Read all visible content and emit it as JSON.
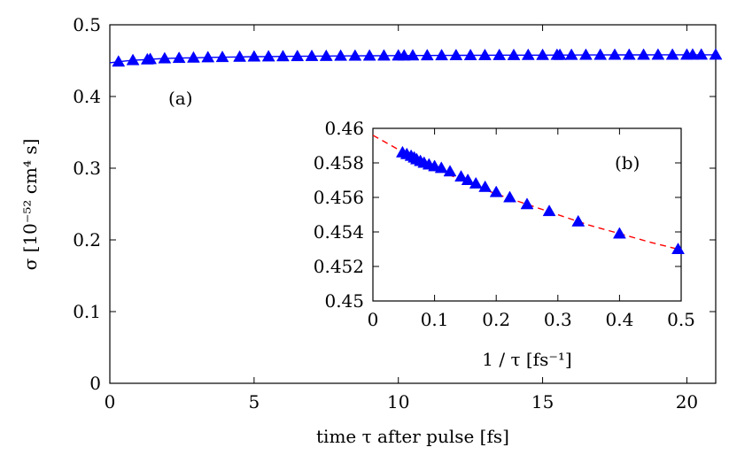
{
  "chart_data": [
    {
      "panel": "(a)",
      "type": "scatter",
      "xlabel": "time τ after pulse [fs]",
      "ylabel": "σ [10⁻⁵² cm⁴ s]",
      "xlim": [
        0,
        21
      ],
      "ylim": [
        0,
        0.5
      ],
      "xticks": [
        "0",
        "5",
        "10",
        "15",
        "20"
      ],
      "yticks": [
        "0",
        "0.1",
        "0.2",
        "0.3",
        "0.4",
        "0.5"
      ],
      "grid": false,
      "marker": "triangle",
      "series": [
        {
          "x": [
            0.3,
            0.8,
            1.3,
            1.4,
            1.9,
            2.4,
            2.9,
            3.4,
            3.9,
            4.5,
            5.0,
            5.5,
            6.0,
            6.5,
            7.0,
            7.5,
            8.0,
            8.5,
            9.0,
            9.5,
            10.0,
            10.2,
            10.5,
            11.0,
            11.5,
            12.0,
            12.5,
            13.0,
            13.5,
            14.0,
            14.5,
            15.0,
            15.5,
            15.6,
            16.0,
            16.5,
            17.0,
            17.5,
            18.0,
            18.5,
            19.0,
            19.5,
            20.0,
            20.2,
            20.5,
            21.0
          ],
          "y": [
            0.4485,
            0.4505,
            0.4515,
            0.452,
            0.453,
            0.4536,
            0.454,
            0.4545,
            0.4548,
            0.4552,
            0.4555,
            0.4557,
            0.4559,
            0.4561,
            0.4563,
            0.4564,
            0.4566,
            0.4567,
            0.4568,
            0.4569,
            0.457,
            0.457,
            0.4571,
            0.4572,
            0.4573,
            0.4574,
            0.4574,
            0.4575,
            0.4576,
            0.4576,
            0.4577,
            0.4577,
            0.4578,
            0.4578,
            0.4578,
            0.4579,
            0.4579,
            0.458,
            0.458,
            0.458,
            0.4581,
            0.4581,
            0.4581,
            0.4582,
            0.4582,
            0.4582
          ],
          "color": "#0000ff"
        }
      ],
      "fit_line": {
        "color": "#0000ff"
      }
    },
    {
      "panel": "(b)",
      "type": "scatter",
      "xlabel": "1 / τ [fs⁻¹]",
      "ylabel": "",
      "xlim": [
        0,
        0.5
      ],
      "ylim": [
        0.45,
        0.46
      ],
      "xticks": [
        "0",
        "0.1",
        "0.2",
        "0.3",
        "0.4",
        "0.5"
      ],
      "yticks": [
        "0.45",
        "0.452",
        "0.454",
        "0.456",
        "0.458",
        "0.46"
      ],
      "grid": false,
      "marker": "triangle",
      "series": [
        {
          "x": [
            0.048,
            0.055,
            0.062,
            0.067,
            0.071,
            0.077,
            0.083,
            0.091,
            0.1,
            0.111,
            0.125,
            0.143,
            0.154,
            0.167,
            0.182,
            0.2,
            0.222,
            0.25,
            0.286,
            0.333,
            0.4,
            0.495
          ],
          "y": [
            0.4586,
            0.4585,
            0.4584,
            0.4583,
            0.4582,
            0.4581,
            0.458,
            0.4579,
            0.4578,
            0.4577,
            0.4575,
            0.4572,
            0.457,
            0.4568,
            0.4566,
            0.4563,
            0.456,
            0.4556,
            0.4552,
            0.4546,
            0.4539,
            0.453
          ],
          "color": "#0000ff"
        }
      ],
      "fit_line": {
        "x": [
          0,
          0.05,
          0.1,
          0.15,
          0.2,
          0.25,
          0.3,
          0.35,
          0.4,
          0.45,
          0.495
        ],
        "y": [
          0.4596,
          0.4586,
          0.4577,
          0.4569,
          0.4562,
          0.4556,
          0.455,
          0.4544,
          0.4539,
          0.4534,
          0.453
        ],
        "color": "#ff0000",
        "style": "dashed"
      }
    }
  ]
}
